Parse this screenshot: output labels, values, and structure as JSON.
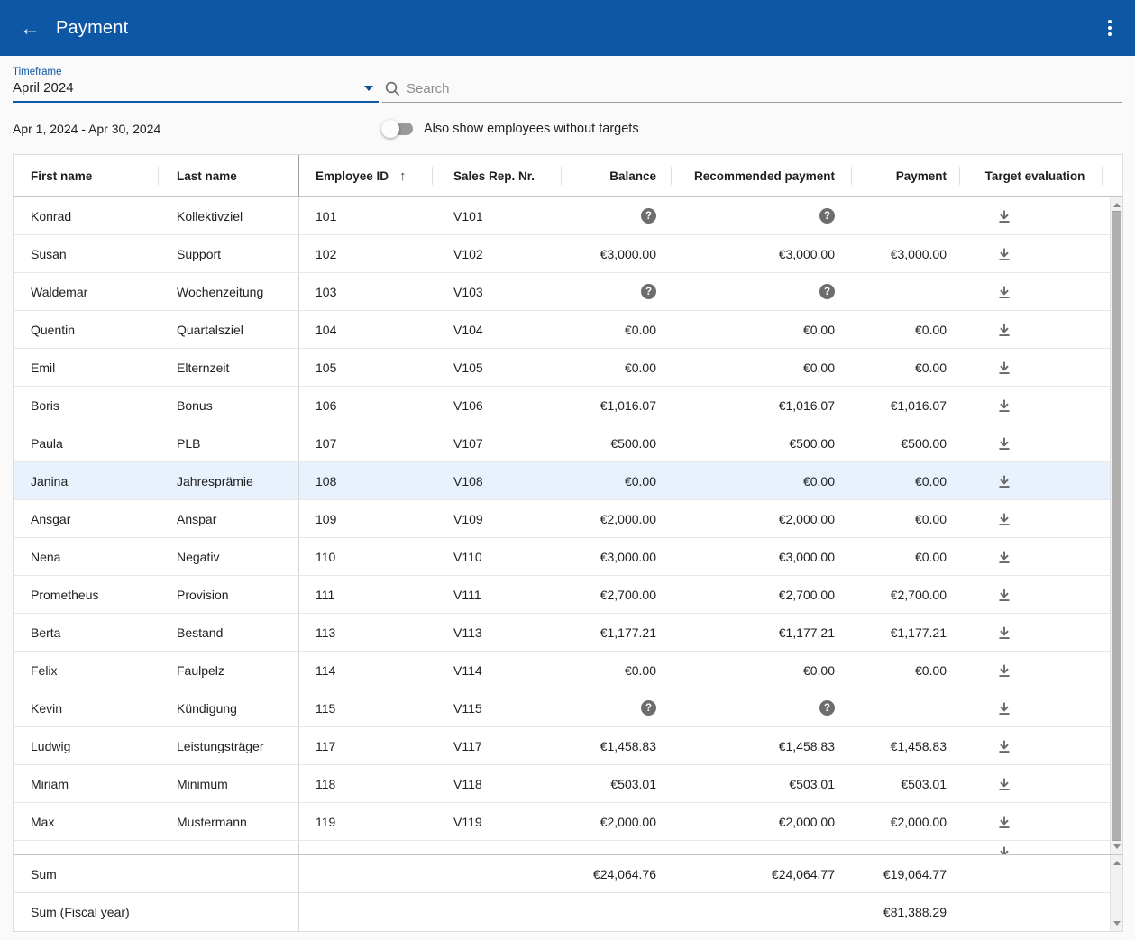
{
  "app_bar": {
    "title": "Payment",
    "back_icon": "arrow-back",
    "menu_icon": "more-vert",
    "color": "#0e57a5"
  },
  "filters": {
    "timeframe": {
      "label": "Timeframe",
      "value": "April 2024",
      "caret_icon": "arrow-drop-down"
    },
    "search": {
      "placeholder": "Search",
      "icon": "magnifier"
    },
    "date_range": "Apr 1, 2024 - Apr 30, 2024",
    "toggle": {
      "label": "Also show employees without targets",
      "state": "off"
    }
  },
  "table": {
    "columns": [
      "First name",
      "Last name",
      "Employee ID",
      "Sales Rep. Nr.",
      "Balance",
      "Recommended payment",
      "Payment",
      "Target evaluation"
    ],
    "sort": {
      "column": "Employee ID",
      "direction": "asc",
      "glyph": "↑"
    },
    "icons": {
      "question": "help-circle",
      "download": "file-download"
    },
    "rows": [
      {
        "first": "Konrad",
        "last": "Kollektivziel",
        "id": "101",
        "rep": "V101",
        "balance": "?",
        "recommended": "?",
        "payment": "",
        "selected": false
      },
      {
        "first": "Susan",
        "last": "Support",
        "id": "102",
        "rep": "V102",
        "balance": "€3,000.00",
        "recommended": "€3,000.00",
        "payment": "€3,000.00",
        "selected": false
      },
      {
        "first": "Waldemar",
        "last": "Wochenzeitung",
        "id": "103",
        "rep": "V103",
        "balance": "?",
        "recommended": "?",
        "payment": "",
        "selected": false
      },
      {
        "first": "Quentin",
        "last": "Quartalsziel",
        "id": "104",
        "rep": "V104",
        "balance": "€0.00",
        "recommended": "€0.00",
        "payment": "€0.00",
        "selected": false
      },
      {
        "first": "Emil",
        "last": "Elternzeit",
        "id": "105",
        "rep": "V105",
        "balance": "€0.00",
        "recommended": "€0.00",
        "payment": "€0.00",
        "selected": false
      },
      {
        "first": "Boris",
        "last": "Bonus",
        "id": "106",
        "rep": "V106",
        "balance": "€1,016.07",
        "recommended": "€1,016.07",
        "payment": "€1,016.07",
        "selected": false
      },
      {
        "first": "Paula",
        "last": "PLB",
        "id": "107",
        "rep": "V107",
        "balance": "€500.00",
        "recommended": "€500.00",
        "payment": "€500.00",
        "selected": false
      },
      {
        "first": "Janina",
        "last": "Jahresprämie",
        "id": "108",
        "rep": "V108",
        "balance": "€0.00",
        "recommended": "€0.00",
        "payment": "€0.00",
        "selected": true
      },
      {
        "first": "Ansgar",
        "last": "Anspar",
        "id": "109",
        "rep": "V109",
        "balance": "€2,000.00",
        "recommended": "€2,000.00",
        "payment": "€0.00",
        "selected": false
      },
      {
        "first": "Nena",
        "last": "Negativ",
        "id": "110",
        "rep": "V110",
        "balance": "€3,000.00",
        "recommended": "€3,000.00",
        "payment": "€0.00",
        "selected": false
      },
      {
        "first": "Prometheus",
        "last": "Provision",
        "id": "111",
        "rep": "V111",
        "balance": "€2,700.00",
        "recommended": "€2,700.00",
        "payment": "€2,700.00",
        "selected": false
      },
      {
        "first": "Berta",
        "last": "Bestand",
        "id": "113",
        "rep": "V113",
        "balance": "€1,177.21",
        "recommended": "€1,177.21",
        "payment": "€1,177.21",
        "selected": false
      },
      {
        "first": "Felix",
        "last": "Faulpelz",
        "id": "114",
        "rep": "V114",
        "balance": "€0.00",
        "recommended": "€0.00",
        "payment": "€0.00",
        "selected": false
      },
      {
        "first": "Kevin",
        "last": "Kündigung",
        "id": "115",
        "rep": "V115",
        "balance": "?",
        "recommended": "?",
        "payment": "",
        "selected": false
      },
      {
        "first": "Ludwig",
        "last": "Leistungsträger",
        "id": "117",
        "rep": "V117",
        "balance": "€1,458.83",
        "recommended": "€1,458.83",
        "payment": "€1,458.83",
        "selected": false
      },
      {
        "first": "Miriam",
        "last": "Minimum",
        "id": "118",
        "rep": "V118",
        "balance": "€503.01",
        "recommended": "€503.01",
        "payment": "€503.01",
        "selected": false
      },
      {
        "first": "Max",
        "last": "Mustermann",
        "id": "119",
        "rep": "V119",
        "balance": "€2,000.00",
        "recommended": "€2,000.00",
        "payment": "€2,000.00",
        "selected": false
      }
    ],
    "sums": {
      "sum": {
        "label": "Sum",
        "balance": "€24,064.76",
        "recommended": "€24,064.77",
        "payment": "€19,064.77"
      },
      "fiscal": {
        "label": "Sum (Fiscal year)",
        "balance": "",
        "recommended": "",
        "payment": "€81,388.29"
      }
    }
  },
  "colors": {
    "accent_blue": "#0e57a5",
    "selected_row": "#e8f2fc",
    "icon_gray": "#6d6d6d"
  }
}
